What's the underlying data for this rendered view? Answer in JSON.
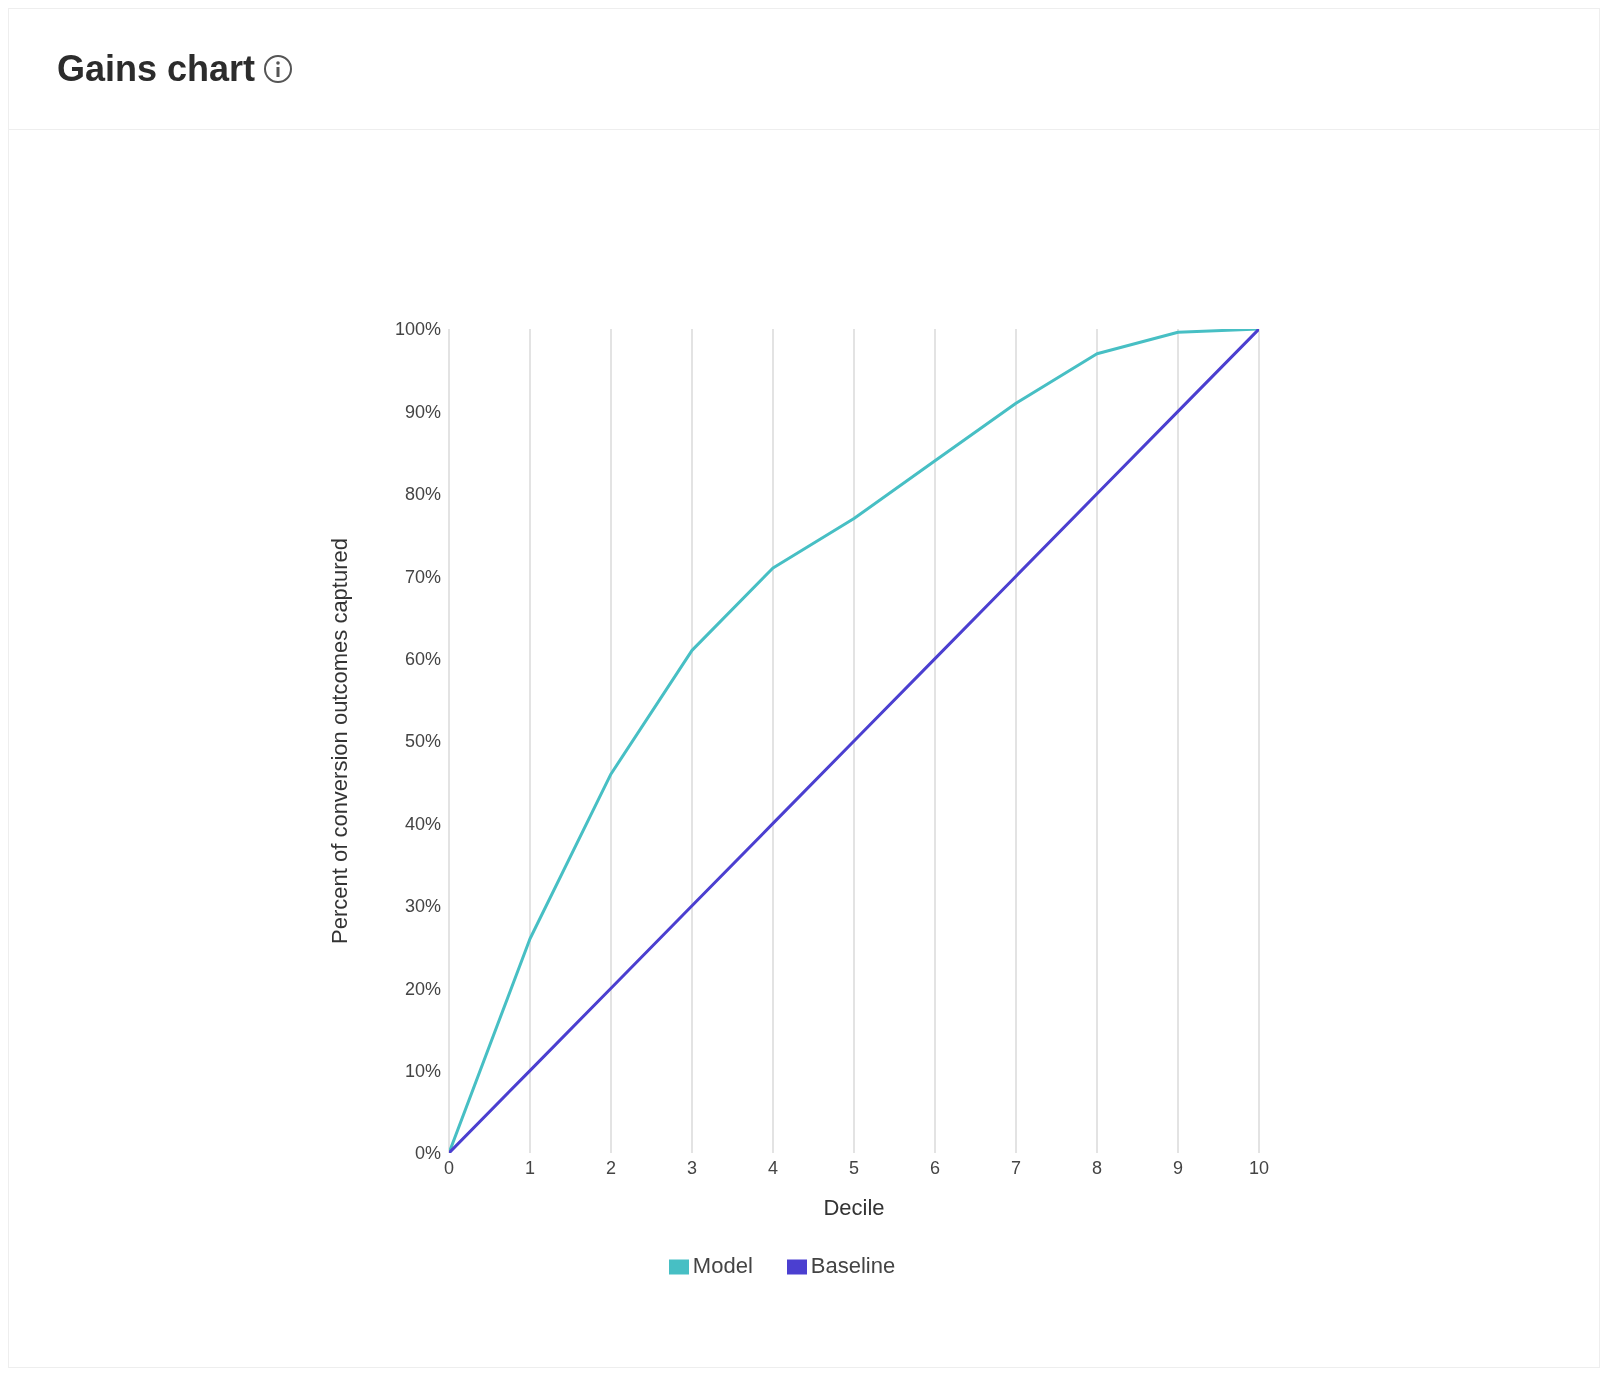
{
  "chart_data": {
    "type": "line",
    "title": "Gains chart",
    "xlabel": "Decile",
    "ylabel": "Percent of conversion outcomes captured",
    "x": [
      0,
      1,
      2,
      3,
      4,
      5,
      6,
      7,
      8,
      9,
      10
    ],
    "series": [
      {
        "name": "Model",
        "color": "#47bfc4",
        "values": [
          0,
          26,
          46,
          61,
          71,
          77,
          84,
          91,
          97,
          99.6,
          100
        ]
      },
      {
        "name": "Baseline",
        "color": "#4b3fd0",
        "values": [
          0,
          10,
          20,
          30,
          40,
          50,
          60,
          70,
          80,
          90,
          100
        ]
      }
    ],
    "xlim": [
      0,
      10
    ],
    "xticks": [
      0,
      1,
      2,
      3,
      4,
      5,
      6,
      7,
      8,
      9,
      10
    ],
    "ylim": [
      0,
      100
    ],
    "yticks": [
      {
        "value": 0,
        "label": "0%"
      },
      {
        "value": 10,
        "label": "10%"
      },
      {
        "value": 20,
        "label": "20%"
      },
      {
        "value": 30,
        "label": "30%"
      },
      {
        "value": 40,
        "label": "40%"
      },
      {
        "value": 50,
        "label": "50%"
      },
      {
        "value": 60,
        "label": "60%"
      },
      {
        "value": 70,
        "label": "70%"
      },
      {
        "value": 80,
        "label": "80%"
      },
      {
        "value": 90,
        "label": "90%"
      },
      {
        "value": 100,
        "label": "100%"
      }
    ],
    "grid": "x",
    "legend": "bottom",
    "marker": "none",
    "line_style": "solid"
  }
}
